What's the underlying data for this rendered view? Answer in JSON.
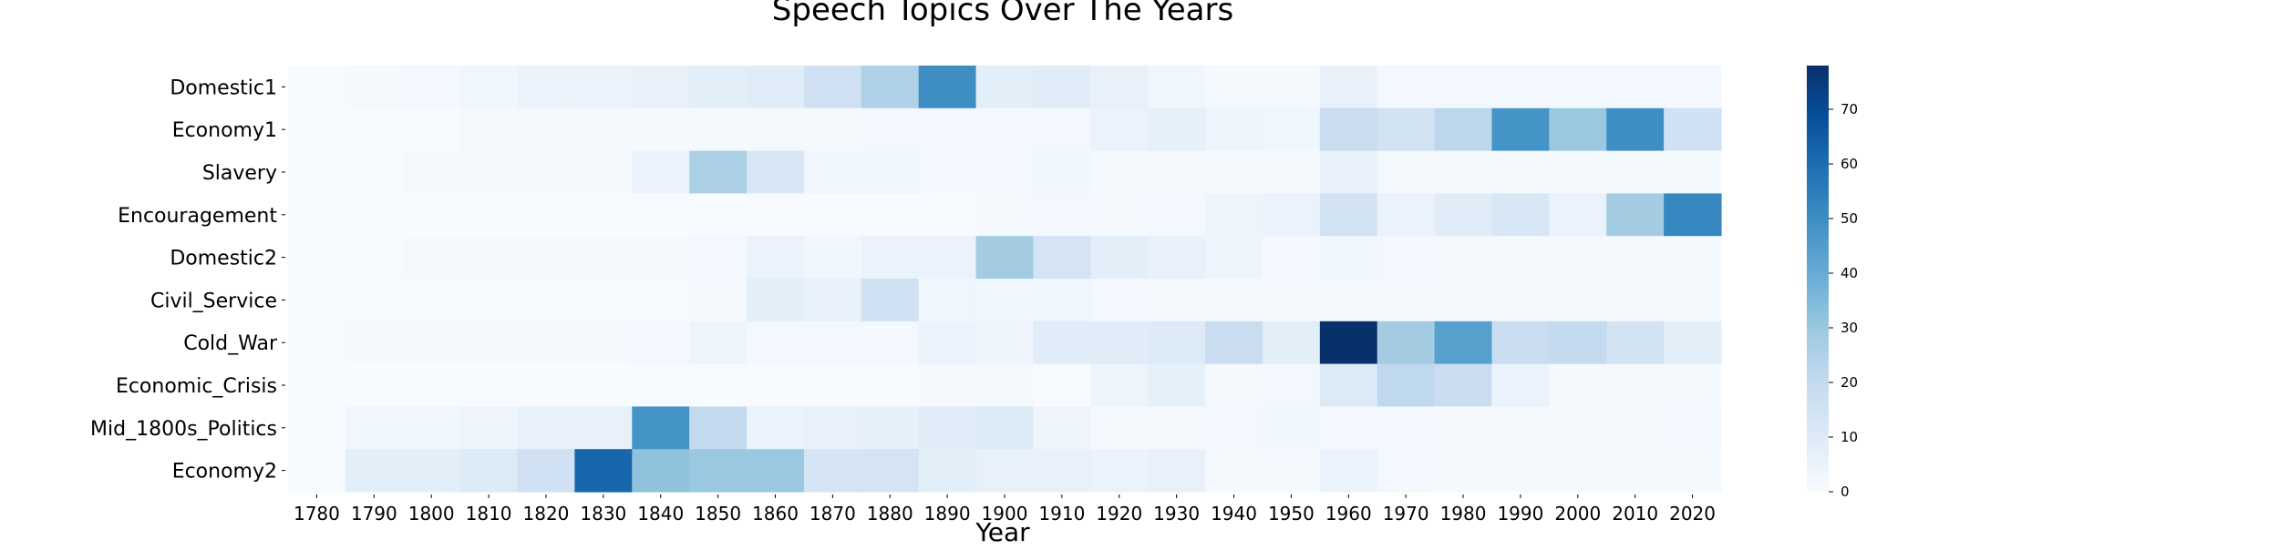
{
  "chart_data": {
    "type": "heatmap",
    "title": "Speech Topics Over The Years",
    "xlabel": "Year",
    "ylabel": "",
    "x": [
      "1780",
      "1790",
      "1800",
      "1810",
      "1820",
      "1830",
      "1840",
      "1850",
      "1860",
      "1870",
      "1880",
      "1890",
      "1900",
      "1910",
      "1920",
      "1930",
      "1940",
      "1950",
      "1960",
      "1970",
      "1980",
      "1990",
      "2000",
      "2010",
      "2020"
    ],
    "y": [
      "Domestic1",
      "Economy1",
      "Slavery",
      "Encouragement",
      "Domestic2",
      "Civil_Service",
      "Cold_War",
      "Economic_Crisis",
      "Mid_1800s_Politics",
      "Economy2"
    ],
    "values": [
      [
        0,
        1,
        2,
        3,
        5,
        5,
        6,
        8,
        9,
        16,
        25,
        50,
        8,
        9,
        6,
        3,
        1,
        1,
        6,
        2,
        2,
        2,
        2,
        2,
        2
      ],
      [
        0,
        0,
        0,
        1,
        1,
        1,
        1,
        1,
        1,
        1,
        2,
        2,
        2,
        2,
        5,
        7,
        4,
        3,
        18,
        15,
        22,
        48,
        30,
        50,
        16
      ],
      [
        0,
        0,
        1,
        1,
        1,
        1,
        5,
        26,
        12,
        3,
        3,
        2,
        2,
        3,
        1,
        1,
        1,
        1,
        6,
        1,
        1,
        1,
        1,
        1,
        1
      ],
      [
        0,
        0,
        0,
        0,
        0,
        0,
        0,
        0,
        0,
        0,
        0,
        0,
        1,
        2,
        1,
        2,
        4,
        5,
        15,
        5,
        9,
        12,
        5,
        28,
        52
      ],
      [
        0,
        0,
        1,
        1,
        1,
        1,
        1,
        2,
        5,
        3,
        5,
        5,
        28,
        14,
        8,
        6,
        4,
        2,
        3,
        2,
        1,
        1,
        1,
        1,
        1
      ],
      [
        0,
        0,
        0,
        0,
        0,
        0,
        0,
        1,
        8,
        6,
        16,
        3,
        3,
        3,
        2,
        1,
        1,
        1,
        1,
        1,
        1,
        1,
        1,
        1,
        1
      ],
      [
        0,
        1,
        1,
        1,
        1,
        1,
        2,
        4,
        2,
        2,
        2,
        5,
        4,
        9,
        9,
        10,
        18,
        8,
        78,
        28,
        44,
        18,
        20,
        15,
        8
      ],
      [
        0,
        0,
        0,
        0,
        0,
        0,
        0,
        0,
        0,
        0,
        0,
        1,
        1,
        0,
        4,
        7,
        1,
        2,
        10,
        21,
        18,
        5,
        1,
        1,
        1
      ],
      [
        0,
        3,
        3,
        4,
        6,
        6,
        48,
        20,
        5,
        6,
        7,
        9,
        10,
        4,
        1,
        1,
        2,
        3,
        2,
        2,
        1,
        1,
        1,
        1,
        2
      ],
      [
        0,
        8,
        8,
        10,
        16,
        62,
        32,
        30,
        30,
        14,
        14,
        8,
        6,
        6,
        5,
        6,
        1,
        1,
        5,
        2,
        1,
        1,
        1,
        1,
        1
      ]
    ],
    "vmin": 0,
    "vmax": 78,
    "colorbar": {
      "ticks": [
        0,
        10,
        20,
        30,
        40,
        50,
        60,
        70
      ],
      "tick_labels": [
        "0",
        "10",
        "20",
        "30",
        "40",
        "50",
        "60",
        "70"
      ],
      "colors": [
        "#f7fbff",
        "#deebf7",
        "#c6dbef",
        "#9ecae1",
        "#6baed6",
        "#4292c6",
        "#2171b5",
        "#08519c",
        "#08306b"
      ]
    },
    "grid": false,
    "legend": "none"
  }
}
